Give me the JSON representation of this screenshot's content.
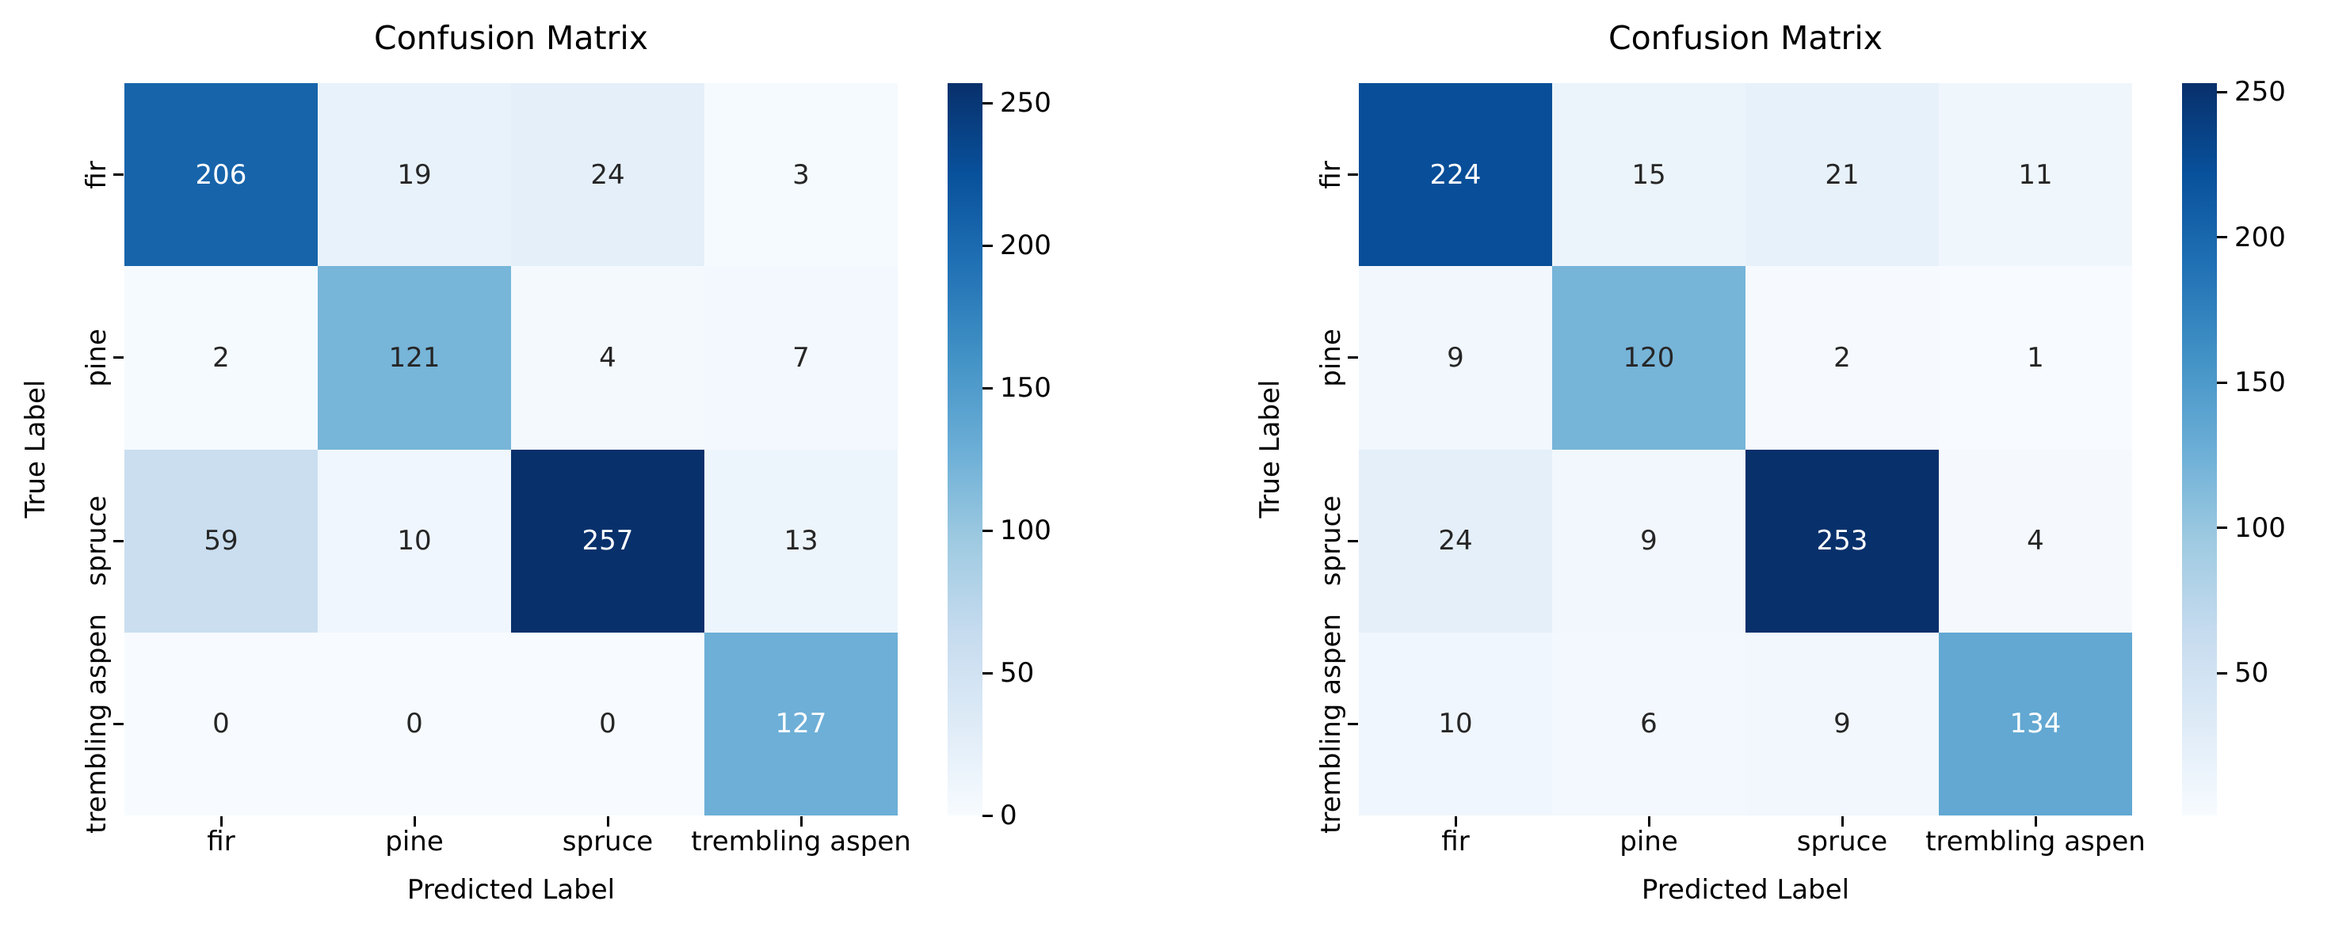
{
  "chart_data": [
    {
      "type": "heatmap",
      "title": "Confusion Matrix",
      "xlabel": "Predicted Label",
      "ylabel": "True Label",
      "categories": [
        "fir",
        "pine",
        "spruce",
        "trembling aspen"
      ],
      "matrix": [
        [
          206,
          19,
          24,
          3
        ],
        [
          2,
          121,
          4,
          7
        ],
        [
          59,
          10,
          257,
          13
        ],
        [
          0,
          0,
          0,
          127
        ]
      ],
      "colormap": "Blues",
      "vmin": 0,
      "vmax": 257,
      "colorbar_ticks": [
        0,
        50,
        100,
        150,
        200,
        250
      ],
      "legend_position": "right",
      "grid": false
    },
    {
      "type": "heatmap",
      "title": "Confusion Matrix",
      "xlabel": "Predicted Label",
      "ylabel": "True Label",
      "categories": [
        "fir",
        "pine",
        "spruce",
        "trembling aspen"
      ],
      "matrix": [
        [
          224,
          15,
          21,
          11
        ],
        [
          9,
          120,
          2,
          1
        ],
        [
          24,
          9,
          253,
          4
        ],
        [
          10,
          6,
          9,
          134
        ]
      ],
      "colormap": "Blues",
      "vmin": 1,
      "vmax": 253,
      "colorbar_ticks": [
        50,
        100,
        150,
        200,
        250
      ],
      "legend_position": "right",
      "grid": false
    }
  ],
  "colors": {
    "background": "#ffffff",
    "annotation_dark": "#262626",
    "annotation_light": "#ffffff",
    "axis_text": "#000000",
    "colormap_low": "#f7fbff",
    "colormap_high": "#08306b"
  }
}
